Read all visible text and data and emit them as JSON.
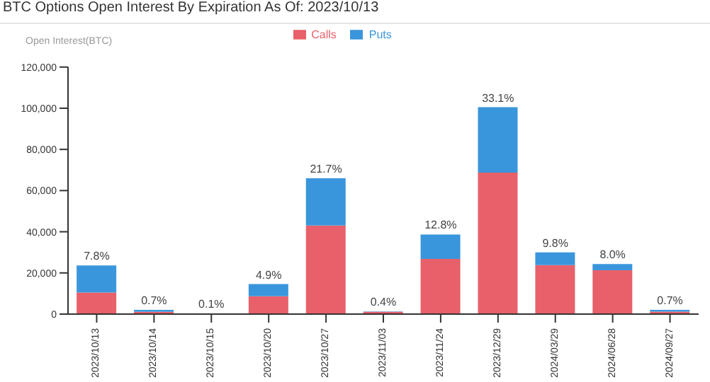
{
  "chart_data": {
    "type": "bar",
    "title": "BTC Options Open Interest By Expiration As Of: 2023/10/13",
    "ylabel": "Open Interest(BTC)",
    "categories": [
      "2023/10/13",
      "2023/10/14",
      "2023/10/15",
      "2023/10/20",
      "2023/10/27",
      "2023/11/03",
      "2023/11/24",
      "2023/12/29",
      "2024/03/29",
      "2024/06/28",
      "2024/09/27"
    ],
    "stacked": true,
    "series": [
      {
        "name": "Calls",
        "color": "#e8606a",
        "values": [
          10500,
          1100,
          200,
          8700,
          43000,
          1100,
          26800,
          68700,
          23800,
          21300,
          1200
        ]
      },
      {
        "name": "Puts",
        "color": "#3a96dc",
        "values": [
          13100,
          1000,
          100,
          5900,
          23000,
          200,
          11900,
          31800,
          6200,
          3000,
          900
        ]
      }
    ],
    "annotations": [
      {
        "text": "7.8%",
        "x": "2023/10/13",
        "y": 23600
      },
      {
        "text": "0.7%",
        "x": "2023/10/14",
        "y": 2100
      },
      {
        "text": "0.1%",
        "x": "2023/10/15",
        "y": 300
      },
      {
        "text": "4.9%",
        "x": "2023/10/20",
        "y": 14600
      },
      {
        "text": "21.7%",
        "x": "2023/10/27",
        "y": 66000
      },
      {
        "text": "0.4%",
        "x": "2023/11/03",
        "y": 1300
      },
      {
        "text": "12.8%",
        "x": "2023/11/24",
        "y": 38700
      },
      {
        "text": "33.1%",
        "x": "2023/12/29",
        "y": 100500
      },
      {
        "text": "9.8%",
        "x": "2024/03/29",
        "y": 30000
      },
      {
        "text": "8.0%",
        "x": "2024/06/28",
        "y": 24300
      },
      {
        "text": "0.7%",
        "x": "2024/09/27",
        "y": 2100
      }
    ],
    "ylim": [
      0,
      120000
    ],
    "yticks": [
      0,
      {
        "value": 20000,
        "label": "20,000"
      },
      {
        "value": 40000,
        "label": "40,000"
      },
      {
        "value": 60000,
        "label": "60,000"
      },
      {
        "value": 80000,
        "label": "80,000"
      },
      {
        "value": 100000,
        "label": "100,000"
      },
      {
        "value": 120000,
        "label": "120,000"
      }
    ],
    "grid": false,
    "legend": "top"
  }
}
